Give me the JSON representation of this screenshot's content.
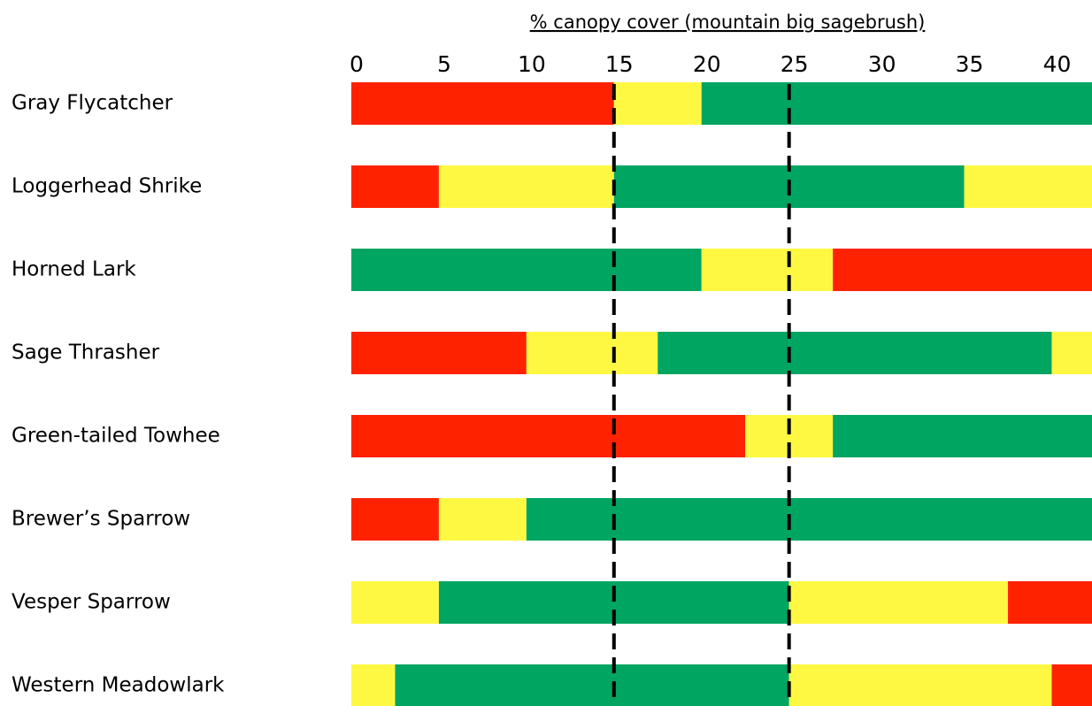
{
  "chart_data": {
    "type": "range_bar",
    "title": "% canopy cover (mountain big sagebrush)",
    "categories": [
      "Gray Flycatcher",
      "Loggerhead Shrike",
      "Horned Lark",
      "Sage Thrasher",
      "Green-tailed Towhee",
      "Brewer’s Sparrow",
      "Vesper Sparrow",
      "Western Meadowlark"
    ],
    "segments": [
      [
        {
          "value": 15,
          "color": "#ff2200"
        },
        {
          "value": 5,
          "color": "#fff843"
        },
        {
          "value": 22.3,
          "color": "#00a562"
        }
      ],
      [
        {
          "value": 5,
          "color": "#ff2200"
        },
        {
          "value": 10,
          "color": "#fff843"
        },
        {
          "value": 20,
          "color": "#00a562"
        },
        {
          "value": 7.3,
          "color": "#fff843"
        }
      ],
      [
        {
          "value": 20,
          "color": "#00a562"
        },
        {
          "value": 7.5,
          "color": "#fff843"
        },
        {
          "value": 14.8,
          "color": "#ff2200"
        }
      ],
      [
        {
          "value": 10,
          "color": "#ff2200"
        },
        {
          "value": 7.5,
          "color": "#fff843"
        },
        {
          "value": 22.5,
          "color": "#00a562"
        },
        {
          "value": 2.3,
          "color": "#fff843"
        }
      ],
      [
        {
          "value": 22.5,
          "color": "#ff2200"
        },
        {
          "value": 5,
          "color": "#fff843"
        },
        {
          "value": 14.8,
          "color": "#00a562"
        }
      ],
      [
        {
          "value": 5,
          "color": "#ff2200"
        },
        {
          "value": 5,
          "color": "#fff843"
        },
        {
          "value": 32.3,
          "color": "#00a562"
        }
      ],
      [
        {
          "value": 5,
          "color": "#fff843"
        },
        {
          "value": 20,
          "color": "#00a562"
        },
        {
          "value": 12.5,
          "color": "#fff843"
        },
        {
          "value": 4.8,
          "color": "#ff2200"
        }
      ],
      [
        {
          "value": 2.5,
          "color": "#fff843"
        },
        {
          "value": 22.5,
          "color": "#00a562"
        },
        {
          "value": 15,
          "color": "#fff843"
        },
        {
          "value": 2.3,
          "color": "#ff2200"
        }
      ]
    ],
    "xlim": [
      0,
      42.3
    ],
    "xticks": [
      0,
      5,
      10,
      15,
      20,
      25,
      30,
      35,
      40
    ],
    "reference_lines": [
      15,
      25
    ]
  }
}
